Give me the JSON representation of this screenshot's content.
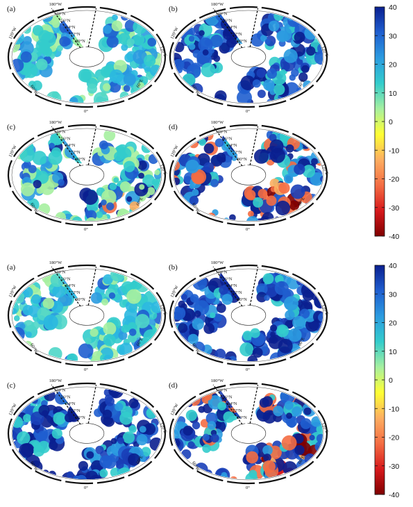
{
  "figure_groups": [
    {
      "panels": [
        {
          "label": "(a)",
          "dominant": "cyan"
        },
        {
          "label": "(b)",
          "dominant": "blue"
        },
        {
          "label": "(c)",
          "dominant": "mixed"
        },
        {
          "label": "(d)",
          "dominant": "blue-red"
        }
      ],
      "colorbar": {
        "ticks": [
          "40",
          "30",
          "20",
          "10",
          "0",
          "-10",
          "-20",
          "-30",
          "-40"
        ],
        "min": -40,
        "max": 40
      }
    },
    {
      "panels": [
        {
          "label": "(a)",
          "dominant": "cyan"
        },
        {
          "label": "(b)",
          "dominant": "blue"
        },
        {
          "label": "(c)",
          "dominant": "blue"
        },
        {
          "label": "(d)",
          "dominant": "blue-red"
        }
      ],
      "colorbar": {
        "ticks": [
          "40",
          "30",
          "20",
          "10",
          "0",
          "-10",
          "-20",
          "-30",
          "-40"
        ],
        "min": -40,
        "max": 40
      }
    }
  ],
  "map_labels": {
    "latitudes": [
      "48°N",
      "56°N",
      "64°N",
      "72°N",
      "80°N"
    ],
    "top": "180°W",
    "left": "120°W",
    "lower_left": "60°W",
    "bottom": "0°",
    "lower_right": "60°E",
    "right": "120°E"
  },
  "colormap": [
    "#7f0000",
    "#d7191c",
    "#f46d43",
    "#fdae61",
    "#ffff33",
    "#a6f0a0",
    "#33cccc",
    "#2b9be0",
    "#1f5ecf",
    "#0a1f8f"
  ]
}
